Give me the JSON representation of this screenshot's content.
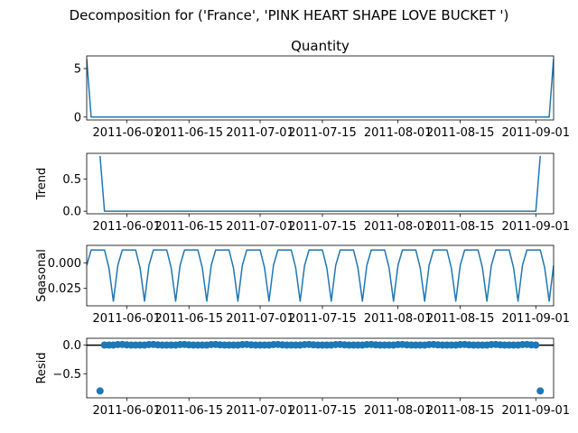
{
  "suptitle": "Decomposition for ('France', 'PINK  HEART SHAPE LOVE BUCKET ')",
  "colors": {
    "series": "#1f77b4",
    "axis": "#000000",
    "zero_line": "#000000"
  },
  "chart_data": [
    {
      "type": "line",
      "title": "Quantity",
      "ylabel": "",
      "x_start": "2011-05-23",
      "x_end": "2011-09-05",
      "xlim": [
        "2011-05-23",
        "2011-09-05"
      ],
      "ylim": [
        -0.3,
        6.3
      ],
      "yticks": [
        0,
        5
      ],
      "ytick_labels": [
        "0",
        "5"
      ],
      "xtick_labels": [
        "2011-06-01",
        "2011-06-15",
        "2011-07-01",
        "2011-07-15",
        "2011-08-01",
        "2011-08-15",
        "2011-09-01"
      ],
      "xticks": [
        "2011-06-01",
        "2011-06-15",
        "2011-07-01",
        "2011-07-15",
        "2011-08-01",
        "2011-08-15",
        "2011-09-01"
      ],
      "points": [
        [
          "2011-05-23",
          6
        ],
        [
          "2011-05-24",
          0
        ],
        [
          "2011-09-04",
          0
        ],
        [
          "2011-09-05",
          6
        ]
      ],
      "grid": false,
      "legend": "none"
    },
    {
      "type": "line",
      "title": "",
      "ylabel": "Trend",
      "x_start": "2011-05-23",
      "x_end": "2011-09-05",
      "xlim": [
        "2011-05-23",
        "2011-09-05"
      ],
      "ylim": [
        -0.04,
        0.9
      ],
      "yticks": [
        0.0,
        0.5
      ],
      "ytick_labels": [
        "0.0",
        "0.5"
      ],
      "xtick_labels": [
        "2011-06-01",
        "2011-06-15",
        "2011-07-01",
        "2011-07-15",
        "2011-08-01",
        "2011-08-15",
        "2011-09-01"
      ],
      "xticks": [
        "2011-06-01",
        "2011-06-15",
        "2011-07-01",
        "2011-07-15",
        "2011-08-01",
        "2011-08-15",
        "2011-09-01"
      ],
      "points": [
        [
          "2011-05-26",
          0.86
        ],
        [
          "2011-05-27",
          0
        ],
        [
          "2011-09-01",
          0
        ],
        [
          "2011-09-02",
          0.86
        ]
      ],
      "grid": false,
      "legend": "none"
    },
    {
      "type": "line",
      "title": "",
      "ylabel": "Seasonal",
      "x_start": "2011-05-23",
      "x_end": "2011-09-05",
      "xlim": [
        "2011-05-23",
        "2011-09-05"
      ],
      "ylim": [
        -0.042,
        0.017
      ],
      "yticks": [
        0.0,
        -0.025
      ],
      "ytick_labels": [
        "0.000",
        "−0.025"
      ],
      "xtick_labels": [
        "2011-06-01",
        "2011-06-15",
        "2011-07-01",
        "2011-07-15",
        "2011-08-01",
        "2011-08-15",
        "2011-09-01"
      ],
      "xticks": [
        "2011-06-01",
        "2011-06-15",
        "2011-07-01",
        "2011-07-15",
        "2011-08-01",
        "2011-08-15",
        "2011-09-01"
      ],
      "period_days": 7,
      "weekly_pattern": [
        -0.0025,
        0.0125,
        0.0125,
        0.0125,
        0.0125,
        -0.005,
        -0.0375
      ],
      "grid": false,
      "legend": "none"
    },
    {
      "type": "scatter",
      "title": "",
      "ylabel": "Resid",
      "x_start": "2011-05-23",
      "x_end": "2011-09-05",
      "xlim": [
        "2011-05-23",
        "2011-09-05"
      ],
      "ylim": [
        -0.92,
        0.12
      ],
      "yticks": [
        0.0,
        -0.5
      ],
      "ytick_labels": [
        "0.0",
        "−0.5"
      ],
      "xtick_labels": [
        "2011-06-01",
        "2011-06-15",
        "2011-07-01",
        "2011-07-15",
        "2011-08-01",
        "2011-08-15",
        "2011-09-01"
      ],
      "xticks": [
        "2011-06-01",
        "2011-06-15",
        "2011-07-01",
        "2011-07-15",
        "2011-08-01",
        "2011-08-15",
        "2011-09-01"
      ],
      "zero_line": 0,
      "points_range": [
        "2011-05-26",
        "2011-09-02"
      ],
      "point_value": 0,
      "weekly_offsets": [
        0.002,
        0.002,
        0.002,
        0.002,
        0.01,
        0.012,
        0.005
      ],
      "outliers": [
        [
          "2011-05-26",
          -0.8
        ],
        [
          "2011-09-02",
          -0.8
        ]
      ],
      "grid": false,
      "legend": "none"
    }
  ]
}
